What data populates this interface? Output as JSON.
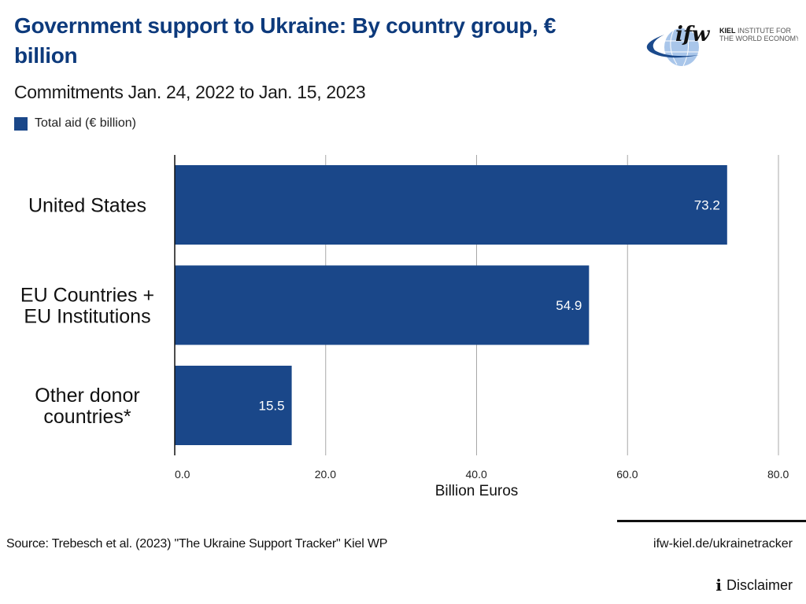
{
  "header": {
    "title": "Government support to Ukraine: By country group, € billion",
    "subtitle": "Commitments Jan. 24, 2022 to Jan. 15, 2023"
  },
  "logo": {
    "mark": "ifw",
    "line1_bold": "KIEL",
    "line1_rest": " INSTITUTE FOR",
    "line2": "THE WORLD ECONOMY"
  },
  "colors": {
    "bar": "#1a4789",
    "title": "#0d3a7c",
    "grid": "#a8a8a8",
    "axis": "#111111"
  },
  "chart_data": {
    "type": "bar",
    "orientation": "horizontal",
    "title": "Government support to Ukraine: By country group, € billion",
    "subtitle": "Commitments Jan. 24, 2022 to Jan. 15, 2023",
    "categories": [
      [
        "United States"
      ],
      [
        "EU Countries +",
        "EU Institutions"
      ],
      [
        "Other donor",
        "countries*"
      ]
    ],
    "series": [
      {
        "name": "Total aid (€ billion)",
        "values": [
          73.2,
          54.9,
          15.5
        ],
        "labels": [
          "73.2",
          "54.9",
          "15.5"
        ]
      }
    ],
    "xlabel": "Billion Euros",
    "ylabel": "",
    "xlim": [
      0,
      80
    ],
    "xticks": [
      0,
      20,
      40,
      60,
      80
    ],
    "xtick_labels": [
      "0.0",
      "20.0",
      "40.0",
      "60.0",
      "80.0"
    ],
    "grid": true,
    "legend": "top-left"
  },
  "legend": {
    "label": "Total aid (€ billion)"
  },
  "footer": {
    "source": "Source: Trebesch et al. (2023) \"The Ukraine Support Tracker\" Kiel WP",
    "url": "ifw-kiel.de/ukrainetracker",
    "disclaimer": "Disclaimer",
    "disclaimer_icon": "info-icon"
  }
}
